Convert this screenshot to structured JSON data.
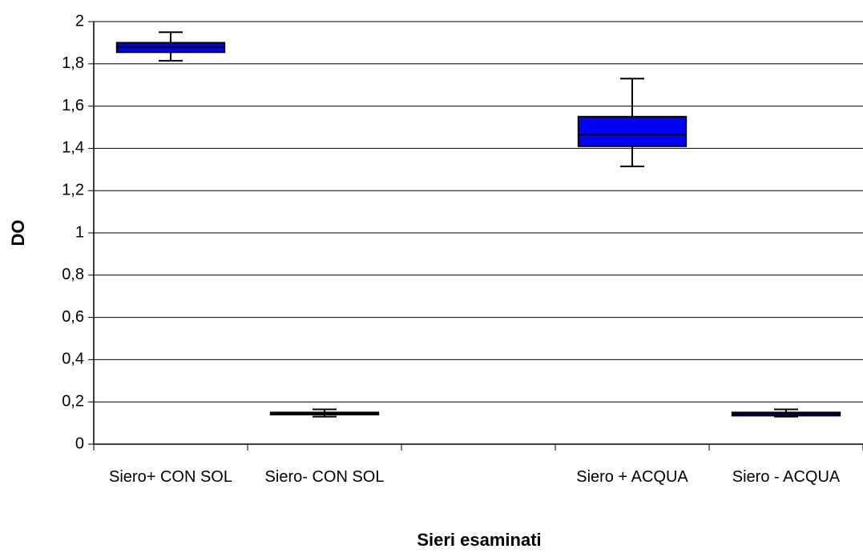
{
  "chart_data": {
    "type": "box",
    "x_label": "Sieri esaminati",
    "y_label": "DO",
    "categories": [
      "Siero+ CON SOL",
      "Siero- CON SOL",
      null,
      "Siero + ACQUA",
      "Siero - ACQUA"
    ],
    "color": "#0000ff",
    "min": [
      1.815,
      0.13,
      null,
      1.315,
      0.13
    ],
    "q1": [
      1.855,
      0.14,
      null,
      1.41,
      0.135
    ],
    "median": [
      1.88,
      0.145,
      null,
      1.465,
      0.145
    ],
    "q3": [
      1.9,
      0.15,
      null,
      1.55,
      0.15
    ],
    "max": [
      1.95,
      0.165,
      null,
      1.73,
      0.165
    ],
    "ylim": [
      0,
      2
    ],
    "yticks": [
      0,
      {
        "value": 0.2,
        "label": "0,2"
      },
      {
        "value": 0.4,
        "label": "0,4"
      },
      {
        "value": 0.6,
        "label": "0,6"
      },
      {
        "value": 0.8,
        "label": "0,8"
      },
      1,
      {
        "value": 1.2,
        "label": "1,2"
      },
      {
        "value": 1.4,
        "label": "1,4"
      },
      {
        "value": 1.6,
        "label": "1,6"
      },
      {
        "value": 1.8,
        "label": "1,8"
      },
      2
    ],
    "grid": true
  }
}
